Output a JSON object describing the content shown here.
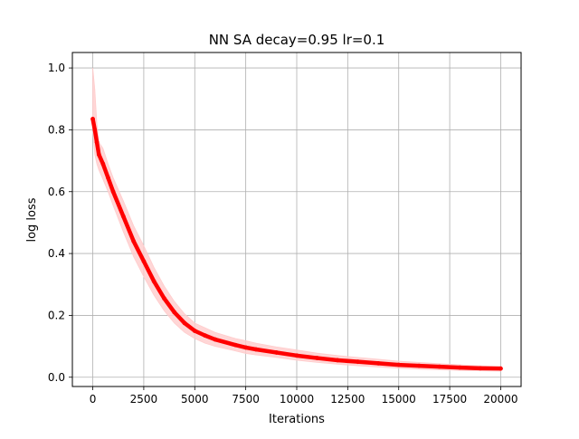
{
  "chart_data": {
    "type": "line",
    "title": "NN SA decay=0.95 lr=0.1",
    "xlabel": "Iterations",
    "ylabel": "log loss",
    "xlim": [
      -1000,
      21000
    ],
    "ylim": [
      -0.03,
      1.05
    ],
    "x_ticks": [
      0,
      2500,
      5000,
      7500,
      10000,
      12500,
      15000,
      17500,
      20000
    ],
    "y_ticks": [
      0.0,
      0.2,
      0.4,
      0.6,
      0.8,
      1.0
    ],
    "x_tick_labels": [
      "0",
      "2500",
      "5000",
      "7500",
      "10000",
      "12500",
      "15000",
      "17500",
      "20000"
    ],
    "y_tick_labels": [
      "0.0",
      "0.2",
      "0.4",
      "0.6",
      "0.8",
      "1.0"
    ],
    "grid": true,
    "legend": "none",
    "series": [
      {
        "color": "#ff0000",
        "band_color": "#ffcccc",
        "x": [
          0,
          100,
          200,
          300,
          500,
          750,
          1000,
          1500,
          2000,
          2500,
          3000,
          3500,
          4000,
          4500,
          5000,
          5500,
          6000,
          7000,
          7500,
          8000,
          9000,
          10000,
          11000,
          12000,
          13000,
          14000,
          15000,
          16000,
          17000,
          18000,
          19000,
          20000
        ],
        "mean": [
          0.835,
          0.8,
          0.76,
          0.72,
          0.69,
          0.645,
          0.6,
          0.52,
          0.44,
          0.375,
          0.31,
          0.255,
          0.21,
          0.175,
          0.15,
          0.135,
          0.122,
          0.104,
          0.096,
          0.09,
          0.08,
          0.07,
          0.062,
          0.055,
          0.05,
          0.045,
          0.04,
          0.037,
          0.034,
          0.031,
          0.029,
          0.028
        ],
        "upper": [
          1.0,
          0.93,
          0.82,
          0.76,
          0.74,
          0.69,
          0.645,
          0.57,
          0.49,
          0.425,
          0.355,
          0.295,
          0.245,
          0.205,
          0.175,
          0.16,
          0.145,
          0.125,
          0.118,
          0.11,
          0.098,
          0.088,
          0.078,
          0.07,
          0.064,
          0.058,
          0.052,
          0.048,
          0.044,
          0.04,
          0.037,
          0.034
        ],
        "lower": [
          0.8,
          0.72,
          0.69,
          0.67,
          0.64,
          0.6,
          0.555,
          0.47,
          0.39,
          0.325,
          0.265,
          0.215,
          0.175,
          0.145,
          0.125,
          0.11,
          0.1,
          0.085,
          0.077,
          0.072,
          0.064,
          0.055,
          0.048,
          0.042,
          0.037,
          0.033,
          0.029,
          0.026,
          0.024,
          0.022,
          0.021,
          0.02
        ]
      }
    ]
  }
}
